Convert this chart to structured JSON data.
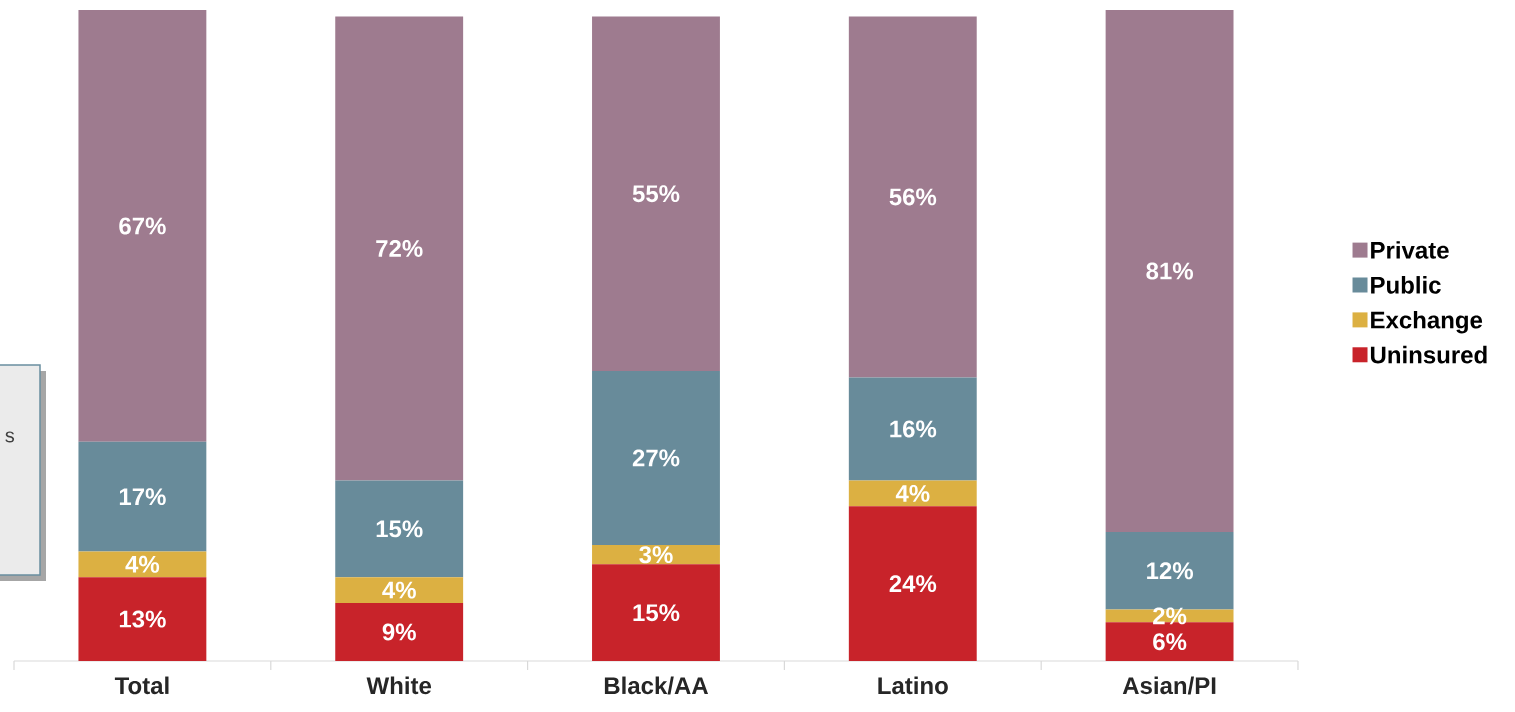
{
  "chart_data": {
    "type": "bar",
    "stacked": true,
    "categories": [
      "Total",
      "White",
      "Black/AA",
      "Latino",
      "Asian/PI"
    ],
    "series": [
      {
        "name": "Uninsured",
        "color": "#c8232a",
        "values": [
          13,
          9,
          15,
          24,
          6
        ],
        "value_labels": [
          "13%",
          "9%",
          "15%",
          "24%",
          "6%"
        ]
      },
      {
        "name": "Exchange",
        "color": "#dcb042",
        "values": [
          4,
          4,
          3,
          4,
          2
        ],
        "value_labels": [
          "4%",
          "4%",
          "3%",
          "4%",
          "2%"
        ]
      },
      {
        "name": "Public",
        "color": "#688b9a",
        "values": [
          17,
          15,
          27,
          16,
          12
        ],
        "value_labels": [
          "17%",
          "15%",
          "27%",
          "16%",
          "12%"
        ]
      },
      {
        "name": "Private",
        "color": "#9e7b8f",
        "values": [
          67,
          72,
          55,
          56,
          81
        ],
        "value_labels": [
          "67%",
          "72%",
          "55%",
          "56%",
          "81%"
        ]
      }
    ],
    "legend": "right",
    "tick_labels": "x",
    "annotations": [
      "s"
    ]
  }
}
